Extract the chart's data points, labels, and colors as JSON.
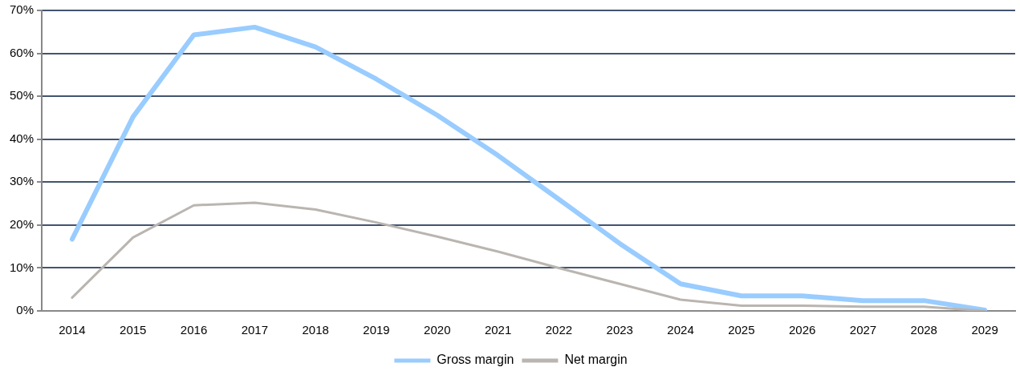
{
  "chart_data": {
    "type": "line",
    "categories": [
      "2014",
      "2015",
      "2016",
      "2017",
      "2018",
      "2019",
      "2020",
      "2021",
      "2022",
      "2023",
      "2024",
      "2025",
      "2026",
      "2027",
      "2028",
      "2029"
    ],
    "series": [
      {
        "name": "Gross margin",
        "color": "#99ccff",
        "values": [
          16.7,
          45.2,
          64.3,
          66.1,
          61.5,
          54,
          45.6,
          36.2,
          26,
          15.7,
          6.3,
          3.5,
          3.5,
          2.4,
          2.4,
          0.2
        ]
      },
      {
        "name": "Net margin",
        "color": "#bab5b0",
        "values": [
          3.1,
          17.1,
          24.6,
          25.2,
          23.6,
          20.6,
          17.3,
          13.8,
          10,
          6.3,
          2.6,
          1.2,
          1.2,
          1,
          1,
          0
        ]
      }
    ],
    "ylim": [
      0,
      70
    ],
    "yticks": [
      {
        "value": 0,
        "label": "0%"
      },
      {
        "value": 10,
        "label": "10%"
      },
      {
        "value": 20,
        "label": "20%"
      },
      {
        "value": 30,
        "label": "30%"
      },
      {
        "value": 40,
        "label": "40%"
      },
      {
        "value": 50,
        "label": "50%"
      },
      {
        "value": 60,
        "label": "60%"
      },
      {
        "value": 70,
        "label": "70%"
      }
    ],
    "grid": "y",
    "legend": "bottom",
    "marker": "none",
    "line_style": "solid"
  }
}
